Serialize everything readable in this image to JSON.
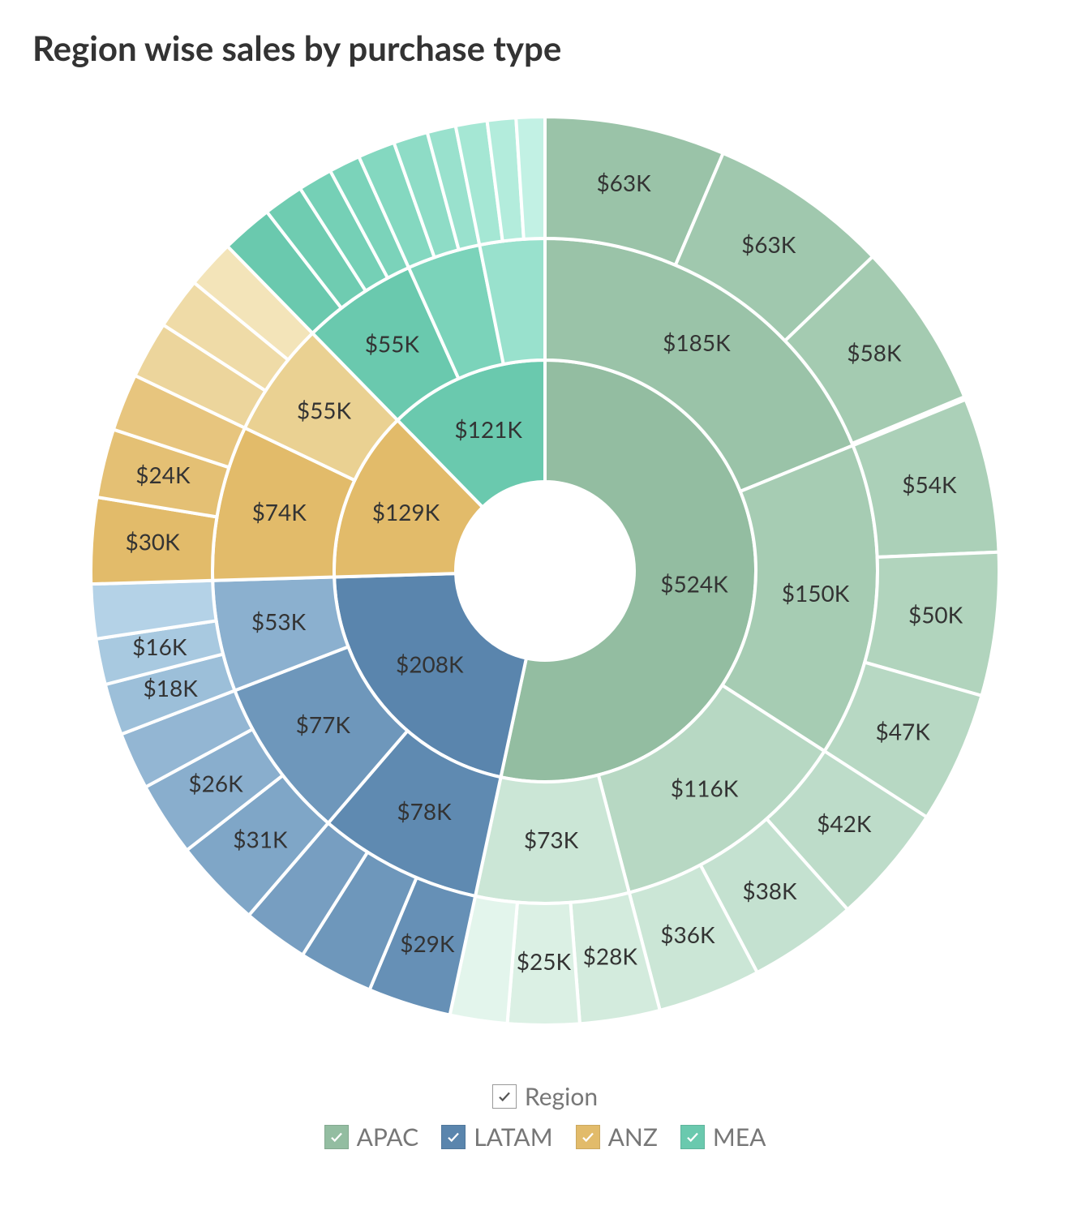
{
  "title": "Region wise sales by purchase type",
  "chart": {
    "type": "sunburst",
    "background": "#ffffff",
    "stroke": "#ffffff",
    "stroke_width": 4,
    "label_color": "#333333",
    "label_fontsize": 28,
    "rings_radii": {
      "r0": 110,
      "r1": 260,
      "r2": 410,
      "r3": 560
    },
    "root_total": 982,
    "start_angle_deg": -90,
    "check_color": "#ffffff",
    "region_check_color": "#555555",
    "regions": [
      {
        "name": "APAC",
        "value": 524,
        "label": "$524K",
        "color": "#93bda1",
        "children": [
          {
            "value": 185,
            "label": "$185K",
            "color": "#9ac3a8",
            "children": [
              {
                "value": 63,
                "label": "$63K",
                "color": "#9ac3a8"
              },
              {
                "value": 63,
                "label": "$63K",
                "color": "#a0c8ae"
              },
              {
                "value": 58,
                "label": "$58K",
                "color": "#a4cbb1"
              }
            ]
          },
          {
            "value": 150,
            "label": "$150K",
            "color": "#a6ccb3",
            "children": [
              {
                "value": 54,
                "label": "$54K",
                "color": "#abd0b8"
              },
              {
                "value": 50,
                "label": "$50K",
                "color": "#b1d4bd"
              },
              {
                "value": 47,
                "label": "$47K",
                "color": "#b7d8c3"
              }
            ]
          },
          {
            "value": 116,
            "label": "$116K",
            "color": "#b7d8c3",
            "children": [
              {
                "value": 42,
                "label": "$42K",
                "color": "#bddcc9"
              },
              {
                "value": 38,
                "label": "$38K",
                "color": "#c4e1d0"
              },
              {
                "value": 36,
                "label": "$36K",
                "color": "#cbe6d6"
              }
            ]
          },
          {
            "value": 73,
            "label": "$73K",
            "color": "#cbe6d6",
            "children": [
              {
                "value": 28,
                "label": "$28K",
                "color": "#d3ebdd"
              },
              {
                "value": 25,
                "label": "$25K",
                "color": "#dbf0e4"
              },
              {
                "value": 20,
                "label": "",
                "color": "#e3f5ec"
              }
            ]
          }
        ]
      },
      {
        "name": "LATAM",
        "value": 208,
        "label": "$208K",
        "color": "#5a85ad",
        "children": [
          {
            "value": 78,
            "label": "$78K",
            "color": "#5f8ab1",
            "children": [
              {
                "value": 29,
                "label": "$29K",
                "color": "#6690b6"
              },
              {
                "value": 26,
                "label": "",
                "color": "#6e97bb"
              },
              {
                "value": 23,
                "label": "",
                "color": "#779ec1"
              }
            ]
          },
          {
            "value": 77,
            "label": "$77K",
            "color": "#6e97bb",
            "children": [
              {
                "value": 31,
                "label": "$31K",
                "color": "#7fa6c7"
              },
              {
                "value": 26,
                "label": "$26K",
                "color": "#89aecd"
              },
              {
                "value": 20,
                "label": "",
                "color": "#93b6d3"
              }
            ]
          },
          {
            "value": 53,
            "label": "$53K",
            "color": "#8bb0cf",
            "children": [
              {
                "value": 18,
                "label": "$18K",
                "color": "#9cbfd9"
              },
              {
                "value": 16,
                "label": "$16K",
                "color": "#a8c9e0"
              },
              {
                "value": 19,
                "label": "",
                "color": "#b4d2e7"
              }
            ]
          }
        ]
      },
      {
        "name": "ANZ",
        "value": 129,
        "label": "$129K",
        "color": "#e2bb6a",
        "children": [
          {
            "value": 74,
            "label": "$74K",
            "color": "#e2bb6a",
            "children": [
              {
                "value": 30,
                "label": "$30K",
                "color": "#e2bb6a"
              },
              {
                "value": 24,
                "label": "$24K",
                "color": "#e4c074"
              },
              {
                "value": 20,
                "label": "",
                "color": "#e7c57e"
              }
            ]
          },
          {
            "value": 55,
            "label": "$55K",
            "color": "#ead192",
            "children": [
              {
                "value": 20,
                "label": "",
                "color": "#ecd59c"
              },
              {
                "value": 18,
                "label": "",
                "color": "#efdba7"
              },
              {
                "value": 17,
                "label": "",
                "color": "#f3e4b9"
              }
            ]
          }
        ]
      },
      {
        "name": "MEA",
        "value": 121,
        "label": "$121K",
        "color": "#6ac9ae",
        "children": [
          {
            "value": 55,
            "label": "$55K",
            "color": "#6ac9ae",
            "children": [
              {
                "value": 18,
                "label": "",
                "color": "#6ac9ae"
              },
              {
                "value": 14,
                "label": "",
                "color": "#6fccb1"
              },
              {
                "value": 12,
                "label": "",
                "color": "#75d0b6"
              },
              {
                "value": 11,
                "label": "",
                "color": "#7bd3ba"
              }
            ]
          },
          {
            "value": 35,
            "label": "",
            "color": "#7bd3ba",
            "children": [
              {
                "value": 13,
                "label": "",
                "color": "#84d8c0"
              },
              {
                "value": 12,
                "label": "",
                "color": "#8edcc6"
              },
              {
                "value": 10,
                "label": "",
                "color": "#99e1cd"
              }
            ]
          },
          {
            "value": 31,
            "label": "",
            "color": "#99e1cd",
            "children": [
              {
                "value": 11,
                "label": "",
                "color": "#a5e7d4"
              },
              {
                "value": 10,
                "label": "",
                "color": "#b3ecdc"
              },
              {
                "value": 10,
                "label": "",
                "color": "#c2f1e4"
              }
            ]
          }
        ]
      }
    ]
  },
  "legend": {
    "fontsize": 30,
    "text_color": "#777777",
    "region_label": "Region",
    "items": [
      {
        "label": "APAC",
        "color": "#93bda1"
      },
      {
        "label": "LATAM",
        "color": "#5a85ad"
      },
      {
        "label": "ANZ",
        "color": "#e2bb6a"
      },
      {
        "label": "MEA",
        "color": "#6ac9ae"
      }
    ]
  }
}
